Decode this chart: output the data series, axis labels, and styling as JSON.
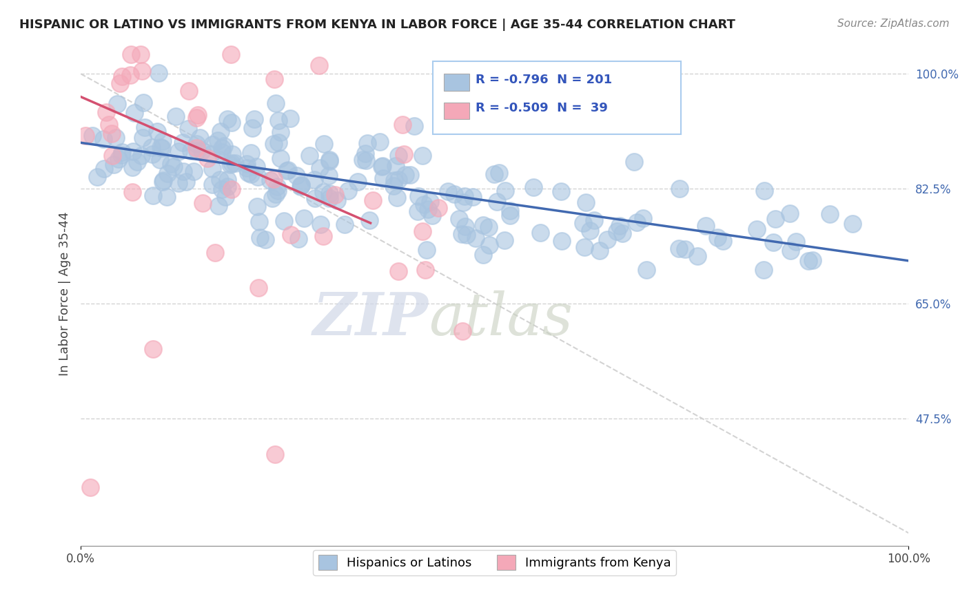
{
  "title": "HISPANIC OR LATINO VS IMMIGRANTS FROM KENYA IN LABOR FORCE | AGE 35-44 CORRELATION CHART",
  "source": "Source: ZipAtlas.com",
  "ylabel": "In Labor Force | Age 35-44",
  "xlim": [
    0.0,
    1.0
  ],
  "ylim": [
    0.28,
    1.05
  ],
  "yticks": [
    0.475,
    0.65,
    0.825,
    1.0
  ],
  "ytick_labels": [
    "47.5%",
    "65.0%",
    "82.5%",
    "100.0%"
  ],
  "blue_R": -0.796,
  "blue_N": 201,
  "pink_R": -0.509,
  "pink_N": 39,
  "blue_color": "#a8c4e0",
  "pink_color": "#f4a8b8",
  "blue_line_color": "#4169b0",
  "pink_line_color": "#d45070",
  "legend_blue_label": "Hispanics or Latinos",
  "legend_pink_label": "Immigrants from Kenya",
  "watermark_zip": "ZIP",
  "watermark_atlas": "atlas",
  "blue_scatter_seed": 42,
  "pink_scatter_seed": 7,
  "blue_slope": -0.18,
  "blue_intercept": 0.895,
  "pink_slope": -0.55,
  "pink_intercept": 0.965
}
